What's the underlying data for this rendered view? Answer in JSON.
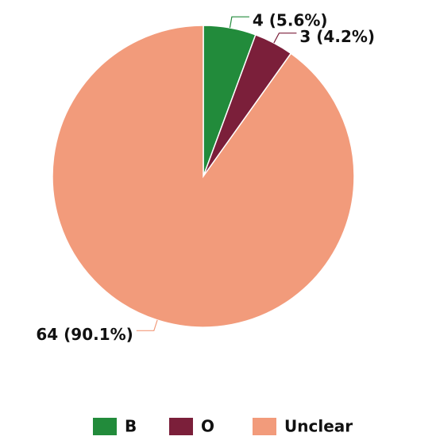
{
  "chart_data": {
    "type": "pie",
    "categories": [
      "B",
      "O",
      "Unclear"
    ],
    "values": [
      4,
      3,
      64
    ],
    "value_labels": [
      "4 (5.6%)",
      "3 (4.2%)",
      "64 (90.1%)"
    ],
    "colors": [
      "#228b3b",
      "#7b1f3a",
      "#f29b7b"
    ],
    "legend": "bottom"
  }
}
